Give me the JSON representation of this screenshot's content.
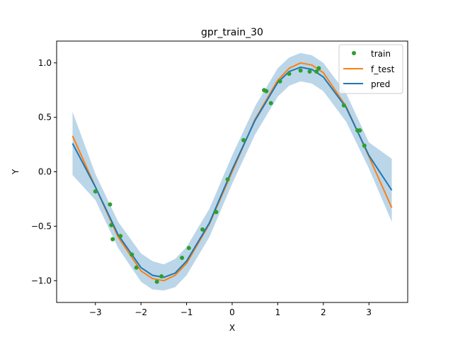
{
  "chart_data": {
    "type": "line",
    "title": "gpr_train_30",
    "xlabel": "X",
    "ylabel": "Y",
    "xlim": [
      -3.85,
      3.85
    ],
    "ylim": [
      -1.2,
      1.2
    ],
    "xticks": [
      -3,
      -2,
      -1,
      0,
      1,
      2,
      3
    ],
    "xtick_labels": [
      "−3",
      "−2",
      "−1",
      "0",
      "1",
      "2",
      "3"
    ],
    "yticks": [
      -1.0,
      -0.5,
      0.0,
      0.5,
      1.0
    ],
    "ytick_labels": [
      "−1.0",
      "−0.5",
      "0.0",
      "0.5",
      "1.0"
    ],
    "grid": false,
    "legend_position": "upper right",
    "colors": {
      "train": "#2ca02c",
      "f_test": "#ff7f0e",
      "pred": "#1f77b4",
      "band": "#1f77b4"
    },
    "series": [
      {
        "name": "train",
        "kind": "scatter",
        "x": [
          -3.0,
          -2.68,
          -2.65,
          -2.62,
          -2.45,
          -2.2,
          -2.1,
          -1.65,
          -1.55,
          -1.1,
          -0.95,
          -0.65,
          -0.35,
          -0.1,
          0.25,
          0.7,
          0.75,
          0.85,
          1.05,
          1.25,
          1.5,
          1.7,
          1.85,
          1.9,
          2.45,
          2.75,
          2.8,
          2.9
        ],
        "y": [
          -0.18,
          -0.3,
          -0.49,
          -0.62,
          -0.59,
          -0.76,
          -0.88,
          -1.01,
          -0.96,
          -0.79,
          -0.7,
          -0.53,
          -0.37,
          -0.07,
          0.29,
          0.75,
          0.74,
          0.63,
          0.83,
          0.9,
          0.93,
          0.92,
          0.92,
          0.95,
          0.61,
          0.38,
          0.38,
          0.24
        ]
      },
      {
        "name": "f_test",
        "kind": "line",
        "x": [
          -3.5,
          -3.0,
          -2.5,
          -2.0,
          -1.75,
          -1.5,
          -1.25,
          -1.0,
          -0.5,
          0.0,
          0.5,
          1.0,
          1.25,
          1.5,
          1.75,
          2.0,
          2.5,
          3.0,
          3.5
        ],
        "y": [
          0.33,
          -0.14,
          -0.6,
          -0.91,
          -0.98,
          -1.0,
          -0.95,
          -0.84,
          -0.48,
          0.0,
          0.48,
          0.84,
          0.95,
          1.0,
          0.98,
          0.91,
          0.6,
          0.14,
          -0.33
        ]
      },
      {
        "name": "pred",
        "kind": "line",
        "x": [
          -3.5,
          -3.0,
          -2.5,
          -2.0,
          -1.75,
          -1.5,
          -1.25,
          -1.0,
          -0.5,
          0.0,
          0.5,
          1.0,
          1.25,
          1.5,
          1.75,
          2.0,
          2.5,
          3.0,
          3.5
        ],
        "y": [
          0.26,
          -0.14,
          -0.58,
          -0.88,
          -0.95,
          -0.97,
          -0.93,
          -0.82,
          -0.47,
          0.02,
          0.47,
          0.82,
          0.92,
          0.96,
          0.94,
          0.87,
          0.59,
          0.15,
          -0.17
        ]
      },
      {
        "kind": "band",
        "x": [
          -3.5,
          -3.0,
          -2.5,
          -2.0,
          -1.75,
          -1.5,
          -1.25,
          -1.0,
          -0.5,
          0.0,
          0.5,
          1.0,
          1.25,
          1.5,
          1.75,
          2.0,
          2.5,
          3.0,
          3.5
        ],
        "lower": [
          -0.03,
          -0.26,
          -0.7,
          -1.01,
          -1.08,
          -1.09,
          -1.06,
          -0.95,
          -0.6,
          -0.11,
          0.34,
          0.69,
          0.79,
          0.83,
          0.81,
          0.74,
          0.46,
          0.03,
          -0.46
        ],
        "upper": [
          0.55,
          -0.02,
          -0.46,
          -0.75,
          -0.82,
          -0.85,
          -0.8,
          -0.69,
          -0.34,
          0.15,
          0.6,
          0.95,
          1.05,
          1.09,
          1.07,
          1.0,
          0.72,
          0.27,
          0.12
        ]
      }
    ]
  }
}
